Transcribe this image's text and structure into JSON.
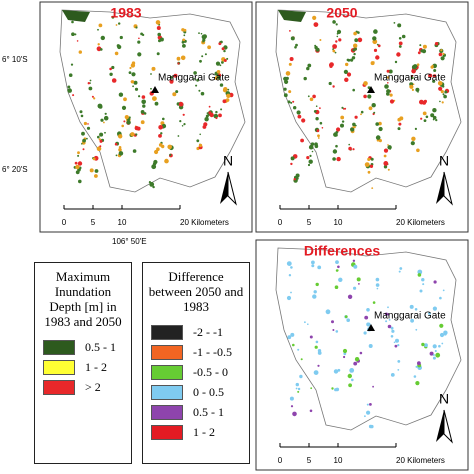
{
  "panels": [
    {
      "title": "1983",
      "landmark": "Manggarai Gate",
      "north": "N",
      "scale": [
        "0",
        "5",
        "10",
        "20 Kilometers"
      ]
    },
    {
      "title": "2050",
      "landmark": "Manggarai Gate",
      "north": "N",
      "scale": [
        "0",
        "5",
        "10",
        "20 Kilometers"
      ]
    },
    {
      "title": "Differences",
      "landmark": "Manggarai Gate",
      "north": "N",
      "scale": [
        "0",
        "5",
        "10",
        "20 Kilometers"
      ]
    }
  ],
  "coordinates": {
    "lat1": "6° 10'S",
    "lat2": "6° 20'S",
    "lon": "106° 50'E"
  },
  "legend_depth": {
    "title": "Maximum Inundation Depth [m] in 1983 and 2050",
    "items": [
      {
        "label": "0.5 - 1",
        "color": "#2d5a1e"
      },
      {
        "label": "1 - 2",
        "color": "#ffff33"
      },
      {
        "label": "> 2",
        "color": "#e8282a"
      }
    ]
  },
  "legend_diff": {
    "title": "Difference between 2050 and 1983",
    "items": [
      {
        "label": "-2 - -1",
        "color": "#222222"
      },
      {
        "label": "-1 - -0.5",
        "color": "#f26522"
      },
      {
        "label": "-0.5 - 0",
        "color": "#66cc33"
      },
      {
        "label": "0 - 0.5",
        "color": "#7fcbf0"
      },
      {
        "label": "0.5 - 1",
        "color": "#8e44ad"
      },
      {
        "label": "1 - 2",
        "color": "#e31b23"
      }
    ]
  }
}
